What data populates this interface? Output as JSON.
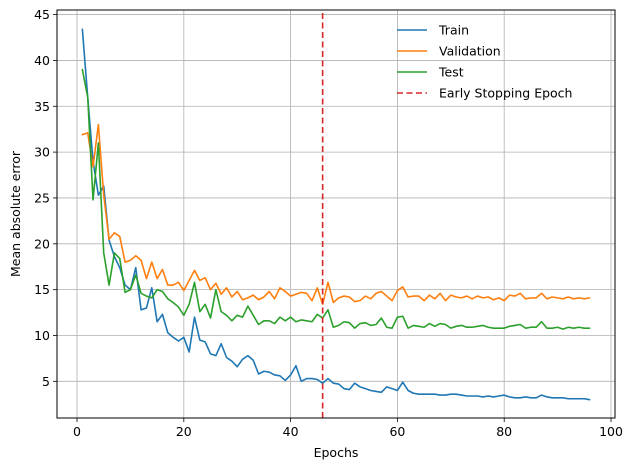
{
  "chart_data": {
    "type": "line",
    "title": "",
    "xlabel": "Epochs",
    "ylabel": "Mean absolute error",
    "xlim": [
      -3.75,
      100.75
    ],
    "ylim": [
      1.0,
      45.5
    ],
    "xticks": [
      0,
      20,
      40,
      60,
      80,
      100
    ],
    "yticks": [
      5,
      10,
      15,
      20,
      25,
      30,
      35,
      40,
      45
    ],
    "grid": true,
    "legend_position": "top-right",
    "early_stopping_epoch": 46,
    "series": [
      {
        "name": "Train",
        "color": "#1f77b4",
        "x": [
          1,
          2,
          3,
          4,
          5,
          6,
          7,
          8,
          9,
          10,
          11,
          12,
          13,
          14,
          15,
          16,
          17,
          18,
          19,
          20,
          21,
          22,
          23,
          24,
          25,
          26,
          27,
          28,
          29,
          30,
          31,
          32,
          33,
          34,
          35,
          36,
          37,
          38,
          39,
          40,
          41,
          42,
          43,
          44,
          45,
          46,
          47,
          48,
          49,
          50,
          51,
          52,
          53,
          54,
          55,
          56,
          57,
          58,
          59,
          60,
          61,
          62,
          63,
          64,
          65,
          66,
          67,
          68,
          69,
          70,
          71,
          72,
          73,
          74,
          75,
          76,
          77,
          78,
          79,
          80,
          81,
          82,
          83,
          84,
          85,
          86,
          87,
          88,
          89,
          90,
          91,
          92,
          93,
          94,
          95,
          96
        ],
        "values": [
          43.4,
          36.0,
          29.0,
          25.3,
          26.3,
          20.4,
          18.6,
          17.4,
          15.5,
          15.0,
          17.4,
          12.8,
          13.0,
          15.2,
          11.5,
          12.3,
          10.3,
          9.8,
          9.4,
          9.8,
          8.2,
          12.0,
          9.5,
          9.3,
          8.0,
          7.8,
          9.1,
          7.6,
          7.2,
          6.6,
          7.4,
          7.8,
          7.3,
          5.8,
          6.1,
          6.0,
          5.7,
          5.6,
          5.1,
          5.7,
          6.7,
          5.0,
          5.3,
          5.3,
          5.2,
          4.8,
          5.3,
          4.8,
          4.7,
          4.2,
          4.1,
          4.8,
          4.4,
          4.2,
          4.0,
          3.9,
          3.8,
          4.4,
          4.2,
          4.0,
          4.9,
          4.0,
          3.7,
          3.6,
          3.6,
          3.6,
          3.6,
          3.5,
          3.5,
          3.6,
          3.6,
          3.5,
          3.4,
          3.4,
          3.4,
          3.3,
          3.4,
          3.3,
          3.4,
          3.5,
          3.3,
          3.2,
          3.2,
          3.3,
          3.2,
          3.2,
          3.5,
          3.3,
          3.2,
          3.2,
          3.2,
          3.1,
          3.1,
          3.1,
          3.1,
          3.0
        ]
      },
      {
        "name": "Validation",
        "color": "#ff7f0e",
        "x": [
          1,
          2,
          3,
          4,
          5,
          6,
          7,
          8,
          9,
          10,
          11,
          12,
          13,
          14,
          15,
          16,
          17,
          18,
          19,
          20,
          21,
          22,
          23,
          24,
          25,
          26,
          27,
          28,
          29,
          30,
          31,
          32,
          33,
          34,
          35,
          36,
          37,
          38,
          39,
          40,
          41,
          42,
          43,
          44,
          45,
          46,
          47,
          48,
          49,
          50,
          51,
          52,
          53,
          54,
          55,
          56,
          57,
          58,
          59,
          60,
          61,
          62,
          63,
          64,
          65,
          66,
          67,
          68,
          69,
          70,
          71,
          72,
          73,
          74,
          75,
          76,
          77,
          78,
          79,
          80,
          81,
          82,
          83,
          84,
          85,
          86,
          87,
          88,
          89,
          90,
          91,
          92,
          93,
          94,
          95,
          96
        ],
        "values": [
          31.9,
          32.1,
          28.4,
          33.0,
          25.3,
          20.5,
          21.2,
          20.8,
          18.0,
          18.2,
          18.7,
          18.2,
          16.2,
          18.0,
          16.2,
          17.2,
          15.5,
          15.5,
          15.8,
          14.9,
          16.0,
          17.1,
          16.0,
          16.3,
          15.0,
          15.7,
          14.5,
          15.2,
          14.2,
          14.8,
          13.9,
          14.1,
          14.4,
          13.9,
          14.2,
          14.8,
          14.0,
          15.2,
          14.8,
          14.3,
          14.5,
          14.7,
          14.6,
          13.8,
          15.2,
          13.4,
          15.8,
          13.6,
          14.1,
          14.3,
          14.2,
          13.7,
          13.8,
          14.3,
          14.0,
          14.6,
          14.8,
          14.3,
          13.8,
          14.9,
          15.3,
          14.2,
          14.3,
          14.3,
          13.8,
          14.4,
          14.0,
          14.6,
          13.8,
          14.4,
          14.2,
          14.1,
          14.3,
          14.0,
          14.3,
          14.1,
          14.2,
          13.9,
          14.1,
          13.8,
          14.4,
          14.3,
          14.6,
          14.0,
          14.1,
          14.1,
          14.6,
          14.0,
          14.2,
          14.1,
          14.0,
          14.2,
          14.0,
          14.1,
          14.0,
          14.1
        ]
      },
      {
        "name": "Test",
        "color": "#2ca02c",
        "x": [
          1,
          2,
          3,
          4,
          5,
          6,
          7,
          8,
          9,
          10,
          11,
          12,
          13,
          14,
          15,
          16,
          17,
          18,
          19,
          20,
          21,
          22,
          23,
          24,
          25,
          26,
          27,
          28,
          29,
          30,
          31,
          32,
          33,
          34,
          35,
          36,
          37,
          38,
          39,
          40,
          41,
          42,
          43,
          44,
          45,
          46,
          47,
          48,
          49,
          50,
          51,
          52,
          53,
          54,
          55,
          56,
          57,
          58,
          59,
          60,
          61,
          62,
          63,
          64,
          65,
          66,
          67,
          68,
          69,
          70,
          71,
          72,
          73,
          74,
          75,
          76,
          77,
          78,
          79,
          80,
          81,
          82,
          83,
          84,
          85,
          86,
          87,
          88,
          89,
          90,
          91,
          92,
          93,
          94,
          95,
          96
        ],
        "values": [
          39.0,
          36.0,
          24.8,
          31.0,
          19.0,
          15.5,
          19.0,
          18.4,
          14.7,
          15.0,
          16.6,
          14.6,
          14.3,
          14.1,
          15.0,
          14.8,
          14.0,
          13.6,
          13.1,
          12.2,
          13.4,
          15.8,
          12.6,
          13.4,
          11.9,
          15.0,
          12.6,
          12.2,
          11.6,
          12.2,
          12.0,
          13.2,
          12.2,
          11.2,
          11.6,
          11.6,
          11.3,
          12.0,
          11.6,
          12.0,
          11.5,
          11.7,
          11.6,
          11.5,
          12.3,
          11.9,
          12.8,
          10.9,
          11.1,
          11.5,
          11.4,
          10.8,
          11.3,
          11.4,
          11.1,
          11.2,
          11.9,
          10.9,
          10.8,
          12.0,
          12.1,
          10.8,
          11.1,
          11.0,
          10.9,
          11.3,
          11.0,
          11.3,
          11.2,
          10.8,
          11.0,
          11.1,
          10.9,
          10.9,
          11.0,
          11.1,
          10.9,
          10.8,
          10.8,
          10.8,
          11.0,
          11.1,
          11.2,
          10.8,
          10.9,
          10.9,
          11.5,
          10.8,
          10.8,
          10.9,
          10.7,
          10.9,
          10.8,
          10.9,
          10.8,
          10.8
        ]
      },
      {
        "name": "Early Stopping Epoch",
        "color": "#d62728",
        "style": "dashed",
        "x": [
          46,
          46
        ],
        "values": [
          1.0,
          45.5
        ]
      }
    ]
  }
}
